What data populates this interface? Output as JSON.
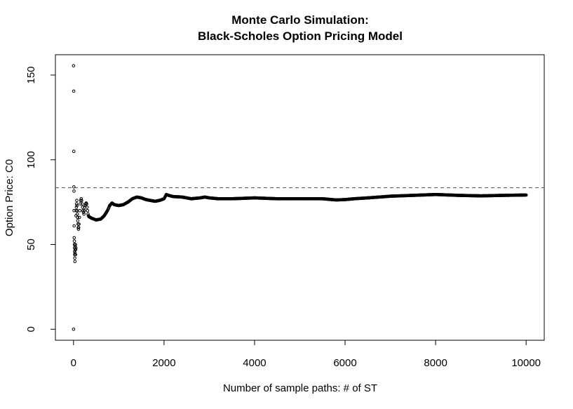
{
  "chart_data": {
    "type": "scatter",
    "title_line1": "Monte Carlo Simulation:",
    "title_line2": "Black-Scholes Option Pricing Model",
    "xlabel": "Number of sample paths: # of ST",
    "ylabel": "Option Price: C0",
    "xlim": [
      -400,
      10400
    ],
    "ylim": [
      -6.5,
      162
    ],
    "x_ticks": [
      0,
      2000,
      4000,
      6000,
      8000,
      10000
    ],
    "y_ticks": [
      0,
      50,
      100,
      150
    ],
    "reference_line": {
      "y": 83.5,
      "color": "#B22222",
      "style": "dashed"
    },
    "point_color": "#000000",
    "series": [
      {
        "early_points": [
          [
            1,
            0
          ],
          [
            2,
            155.5
          ],
          [
            4,
            140.5
          ],
          [
            6,
            105
          ],
          [
            8,
            84
          ],
          [
            10,
            81.5
          ],
          [
            12,
            70
          ],
          [
            14,
            61
          ],
          [
            16,
            54
          ],
          [
            18,
            52
          ],
          [
            20,
            50
          ],
          [
            22,
            48
          ],
          [
            24,
            46
          ],
          [
            26,
            44
          ],
          [
            28,
            42
          ],
          [
            30,
            40
          ],
          [
            33,
            45
          ],
          [
            36,
            49
          ],
          [
            39,
            47
          ],
          [
            42,
            50
          ],
          [
            45,
            44
          ],
          [
            48,
            47
          ],
          [
            52,
            48
          ],
          [
            56,
            67
          ],
          [
            60,
            70
          ],
          [
            64,
            72
          ],
          [
            68,
            74
          ],
          [
            72,
            76
          ],
          [
            76,
            73
          ],
          [
            80,
            70
          ],
          [
            85,
            68
          ],
          [
            90,
            66
          ],
          [
            95,
            64
          ],
          [
            100,
            62
          ],
          [
            105,
            60
          ],
          [
            110,
            59
          ],
          [
            115,
            60
          ],
          [
            120,
            62
          ],
          [
            130,
            66
          ],
          [
            140,
            70
          ],
          [
            150,
            74
          ],
          [
            160,
            76
          ],
          [
            170,
            77
          ],
          [
            180,
            76
          ],
          [
            190,
            74
          ],
          [
            200,
            72
          ],
          [
            210,
            70
          ],
          [
            220,
            69
          ],
          [
            230,
            68
          ],
          [
            240,
            70
          ],
          [
            250,
            72
          ],
          [
            260,
            73
          ],
          [
            270,
            74
          ],
          [
            280,
            74.5
          ],
          [
            290,
            74
          ],
          [
            300,
            72
          ],
          [
            310,
            70
          ],
          [
            320,
            68
          ],
          [
            330,
            67
          ],
          [
            340,
            66.5
          ]
        ],
        "keypoints": [
          [
            340,
            66.5
          ],
          [
            400,
            65.5
          ],
          [
            500,
            64.5
          ],
          [
            600,
            65
          ],
          [
            680,
            67
          ],
          [
            750,
            70
          ],
          [
            800,
            73
          ],
          [
            850,
            74.5
          ],
          [
            900,
            73.5
          ],
          [
            1000,
            73
          ],
          [
            1100,
            73.5
          ],
          [
            1200,
            75
          ],
          [
            1300,
            77
          ],
          [
            1400,
            78
          ],
          [
            1500,
            77.5
          ],
          [
            1600,
            76.5
          ],
          [
            1700,
            76
          ],
          [
            1800,
            75.5
          ],
          [
            1900,
            76
          ],
          [
            2000,
            77
          ],
          [
            2050,
            79.5
          ],
          [
            2100,
            79
          ],
          [
            2200,
            78.3
          ],
          [
            2400,
            78
          ],
          [
            2500,
            77.5
          ],
          [
            2600,
            77
          ],
          [
            2800,
            77.5
          ],
          [
            2900,
            78
          ],
          [
            3000,
            77.5
          ],
          [
            3200,
            77
          ],
          [
            3500,
            77
          ],
          [
            4000,
            77.5
          ],
          [
            4300,
            77.2
          ],
          [
            4500,
            77
          ],
          [
            5000,
            77
          ],
          [
            5500,
            77
          ],
          [
            5800,
            76.3
          ],
          [
            6000,
            76.5
          ],
          [
            6200,
            77
          ],
          [
            6500,
            77.5
          ],
          [
            7000,
            78.5
          ],
          [
            7500,
            79
          ],
          [
            8000,
            79.5
          ],
          [
            8500,
            79
          ],
          [
            9000,
            78.7
          ],
          [
            9500,
            79
          ],
          [
            10000,
            79.2
          ]
        ],
        "x_max": 10000
      }
    ]
  }
}
